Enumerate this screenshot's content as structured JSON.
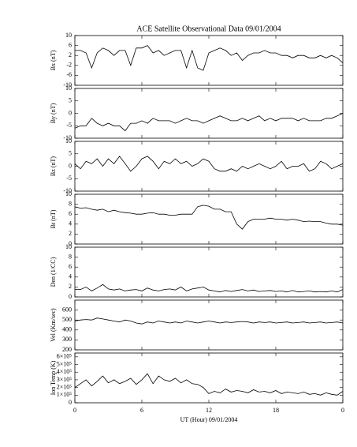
{
  "chart_data": [
    {
      "type": "line",
      "title": "ACE Satellite Observational Data   09/01/2004",
      "ylabel": "Bx (nT)",
      "ylim": [
        -10,
        10
      ],
      "yticks": [
        -10,
        -6,
        -2,
        2,
        6,
        10
      ],
      "xlim": [
        0,
        24
      ],
      "xticks": [
        0,
        6,
        12,
        18,
        {
          "value": 24,
          "label": "0"
        }
      ],
      "color": "#000000",
      "x": [
        0,
        0.5,
        1,
        1.5,
        2,
        2.5,
        3,
        3.5,
        4,
        4.5,
        5,
        5.5,
        6,
        6.5,
        7,
        7.5,
        8,
        8.5,
        9,
        9.5,
        10,
        10.5,
        11,
        11.5,
        12,
        12.5,
        13,
        13.5,
        14,
        14.5,
        15,
        15.5,
        16,
        16.5,
        17,
        17.5,
        18,
        18.5,
        19,
        19.5,
        20,
        20.5,
        21,
        21.5,
        22,
        22.5,
        23,
        23.5,
        24
      ],
      "values": [
        4,
        4,
        3,
        -3,
        3,
        5,
        4,
        2,
        4,
        4,
        -2,
        5,
        5,
        6,
        3,
        4,
        2,
        3,
        4,
        4,
        -3,
        4,
        -3,
        -4,
        3,
        4,
        5,
        4,
        2,
        3,
        0,
        2,
        3,
        3,
        4,
        3,
        3,
        2,
        2,
        1,
        2,
        2,
        1,
        1,
        2,
        1,
        2,
        1,
        -1
      ]
    },
    {
      "type": "line",
      "ylabel": "By (nT)",
      "ylim": [
        -10,
        10
      ],
      "yticks": [
        -10,
        -5,
        0,
        5,
        10
      ],
      "xlim": [
        0,
        24
      ],
      "xticks": [
        0,
        6,
        12,
        18,
        {
          "value": 24,
          "label": "0"
        }
      ],
      "color": "#000000",
      "x": [
        0,
        0.5,
        1,
        1.5,
        2,
        2.5,
        3,
        3.5,
        4,
        4.5,
        5,
        5.5,
        6,
        6.5,
        7,
        7.5,
        8,
        8.5,
        9,
        9.5,
        10,
        10.5,
        11,
        11.5,
        12,
        12.5,
        13,
        13.5,
        14,
        14.5,
        15,
        15.5,
        16,
        16.5,
        17,
        17.5,
        18,
        18.5,
        19,
        19.5,
        20,
        20.5,
        21,
        21.5,
        22,
        22.5,
        23,
        23.5,
        24
      ],
      "values": [
        -6,
        -5,
        -5,
        -2,
        -4,
        -5,
        -4,
        -5,
        -5,
        -7,
        -4,
        -4,
        -3,
        -4,
        -2,
        -3,
        -3,
        -3,
        -4,
        -3,
        -2,
        -3,
        -3,
        -4,
        -3,
        -2,
        -1,
        -2,
        -3,
        -3,
        -2,
        -3,
        -2,
        -1,
        -3,
        -2,
        -3,
        -2,
        -2,
        -2,
        -3,
        -2,
        -3,
        -3,
        -3,
        -2,
        -2,
        -1,
        0
      ]
    },
    {
      "type": "line",
      "ylabel": "Bz (nT)",
      "ylim": [
        -10,
        10
      ],
      "yticks": [
        -10,
        -5,
        0,
        5,
        10
      ],
      "xlim": [
        0,
        24
      ],
      "xticks": [
        0,
        6,
        12,
        18,
        {
          "value": 24,
          "label": "0"
        }
      ],
      "color": "#000000",
      "x": [
        0,
        0.5,
        1,
        1.5,
        2,
        2.5,
        3,
        3.5,
        4,
        4.5,
        5,
        5.5,
        6,
        6.5,
        7,
        7.5,
        8,
        8.5,
        9,
        9.5,
        10,
        10.5,
        11,
        11.5,
        12,
        12.5,
        13,
        13.5,
        14,
        14.5,
        15,
        15.5,
        16,
        16.5,
        17,
        17.5,
        18,
        18.5,
        19,
        19.5,
        20,
        20.5,
        21,
        21.5,
        22,
        22.5,
        23,
        23.5,
        24
      ],
      "values": [
        1,
        -1,
        2,
        1,
        3,
        0,
        3,
        1,
        4,
        1,
        -2,
        0,
        3,
        4,
        2,
        -1,
        2,
        1,
        3,
        1,
        2,
        0,
        1,
        3,
        2,
        -1,
        -2,
        -2,
        -1,
        -2,
        0,
        -1,
        0,
        1,
        0,
        -1,
        0,
        2,
        -1,
        0,
        0,
        1,
        -2,
        -1,
        2,
        1,
        -1,
        0,
        1
      ]
    },
    {
      "type": "line",
      "ylabel": "Bt (nT)",
      "ylim": [
        0,
        10
      ],
      "yticks": [
        0,
        2,
        4,
        6,
        8,
        10
      ],
      "xlim": [
        0,
        24
      ],
      "xticks": [
        0,
        6,
        12,
        18,
        {
          "value": 24,
          "label": "0"
        }
      ],
      "color": "#000000",
      "x": [
        0,
        0.5,
        1,
        1.5,
        2,
        2.5,
        3,
        3.5,
        4,
        4.5,
        5,
        5.5,
        6,
        6.5,
        7,
        7.5,
        8,
        8.5,
        9,
        9.5,
        10,
        10.5,
        11,
        11.5,
        12,
        12.5,
        13,
        13.5,
        14,
        14.5,
        15,
        15.5,
        16,
        16.5,
        17,
        17.5,
        18,
        18.5,
        19,
        19.5,
        20,
        20.5,
        21,
        21.5,
        22,
        22.5,
        23,
        23.5,
        24
      ],
      "values": [
        7.5,
        7.2,
        7.3,
        7,
        6.8,
        7,
        6.5,
        6.8,
        6.5,
        6.3,
        6.2,
        6,
        6,
        6.2,
        6.3,
        6,
        6,
        5.8,
        5.8,
        6,
        6,
        6,
        7.5,
        7.8,
        7.6,
        7,
        7,
        6.5,
        6.5,
        4,
        3,
        4.5,
        5,
        5,
        5,
        5.2,
        5,
        5,
        4.8,
        5,
        4.8,
        4.5,
        4.6,
        4.5,
        4.5,
        4.2,
        4,
        4,
        3.8
      ]
    },
    {
      "type": "line",
      "ylabel": "Den (1/CC)",
      "ylim": [
        0,
        10
      ],
      "yticks": [
        0,
        2,
        4,
        6,
        8,
        10
      ],
      "xlim": [
        0,
        24
      ],
      "xticks": [
        0,
        6,
        12,
        18,
        {
          "value": 24,
          "label": "0"
        }
      ],
      "color": "#000000",
      "x": [
        0,
        0.5,
        1,
        1.5,
        2,
        2.5,
        3,
        3.5,
        4,
        4.5,
        5,
        5.5,
        6,
        6.5,
        7,
        7.5,
        8,
        8.5,
        9,
        9.5,
        10,
        10.5,
        11,
        11.5,
        12,
        12.5,
        13,
        13.5,
        14,
        14.5,
        15,
        15.5,
        16,
        16.5,
        17,
        17.5,
        18,
        18.5,
        19,
        19.5,
        20,
        20.5,
        21,
        21.5,
        22,
        22.5,
        23,
        23.5,
        24
      ],
      "values": [
        1.5,
        1.5,
        2,
        1.2,
        1.8,
        2.5,
        1.6,
        1.4,
        1.6,
        1.2,
        1.4,
        1.5,
        1.2,
        1.8,
        1.4,
        1.2,
        1.5,
        1.6,
        1.4,
        2,
        1.2,
        1.6,
        1.8,
        2,
        1.4,
        1.2,
        1,
        1.3,
        1.1,
        1.3,
        1.5,
        1.2,
        1.4,
        1.1,
        1.2,
        1.3,
        1.1,
        1.2,
        1,
        1.3,
        1,
        1.1,
        1.2,
        1,
        1.1,
        1,
        1.2,
        1,
        1.5
      ]
    },
    {
      "type": "line",
      "ylabel": "Vel (Km/sec)",
      "ylim": [
        200,
        700
      ],
      "yticks": [
        200,
        300,
        400,
        500,
        600
      ],
      "xlim": [
        0,
        24
      ],
      "xticks": [
        0,
        6,
        12,
        18,
        {
          "value": 24,
          "label": "0"
        }
      ],
      "color": "#000000",
      "x": [
        0,
        0.5,
        1,
        1.5,
        2,
        2.5,
        3,
        3.5,
        4,
        4.5,
        5,
        5.5,
        6,
        6.5,
        7,
        7.5,
        8,
        8.5,
        9,
        9.5,
        10,
        10.5,
        11,
        11.5,
        12,
        12.5,
        13,
        13.5,
        14,
        14.5,
        15,
        15.5,
        16,
        16.5,
        17,
        17.5,
        18,
        18.5,
        19,
        19.5,
        20,
        20.5,
        21,
        21.5,
        22,
        22.5,
        23,
        23.5,
        24
      ],
      "values": [
        490,
        500,
        505,
        500,
        520,
        510,
        500,
        490,
        480,
        500,
        490,
        470,
        460,
        480,
        470,
        490,
        480,
        470,
        480,
        470,
        490,
        480,
        470,
        480,
        490,
        480,
        470,
        480,
        475,
        480,
        485,
        480,
        470,
        480,
        475,
        480,
        470,
        475,
        480,
        470,
        475,
        480,
        470,
        475,
        480,
        470,
        475,
        480,
        470
      ]
    },
    {
      "type": "line",
      "ylabel": "Ion Temp (K)",
      "xlabel": "UT (Hour)   09/01/2004",
      "ylim": [
        0,
        650000
      ],
      "yticks": [
        0,
        {
          "value": 100000,
          "label": "1×10⁵"
        },
        {
          "value": 200000,
          "label": "2×10⁵"
        },
        {
          "value": 300000,
          "label": "3×10⁵"
        },
        {
          "value": 400000,
          "label": "4×10⁵"
        },
        {
          "value": 500000,
          "label": "5×10⁵"
        },
        {
          "value": 600000,
          "label": "6×10⁵"
        }
      ],
      "xlim": [
        0,
        24
      ],
      "xticks": [
        0,
        6,
        12,
        18,
        {
          "value": 24,
          "label": "0"
        }
      ],
      "color": "#000000",
      "x": [
        0,
        0.5,
        1,
        1.5,
        2,
        2.5,
        3,
        3.5,
        4,
        4.5,
        5,
        5.5,
        6,
        6.5,
        7,
        7.5,
        8,
        8.5,
        9,
        9.5,
        10,
        10.5,
        11,
        11.5,
        12,
        12.5,
        13,
        13.5,
        14,
        14.5,
        15,
        15.5,
        16,
        16.5,
        17,
        17.5,
        18,
        18.5,
        19,
        19.5,
        20,
        20.5,
        21,
        21.5,
        22,
        22.5,
        23,
        23.5,
        24
      ],
      "values": [
        200000,
        250000,
        300000,
        220000,
        280000,
        350000,
        260000,
        300000,
        250000,
        280000,
        320000,
        240000,
        300000,
        380000,
        250000,
        350000,
        300000,
        280000,
        320000,
        260000,
        300000,
        250000,
        240000,
        200000,
        120000,
        150000,
        130000,
        180000,
        140000,
        160000,
        150000,
        130000,
        170000,
        140000,
        150000,
        130000,
        160000,
        120000,
        140000,
        130000,
        120000,
        140000,
        110000,
        120000,
        100000,
        130000,
        110000,
        100000,
        150000
      ]
    }
  ]
}
